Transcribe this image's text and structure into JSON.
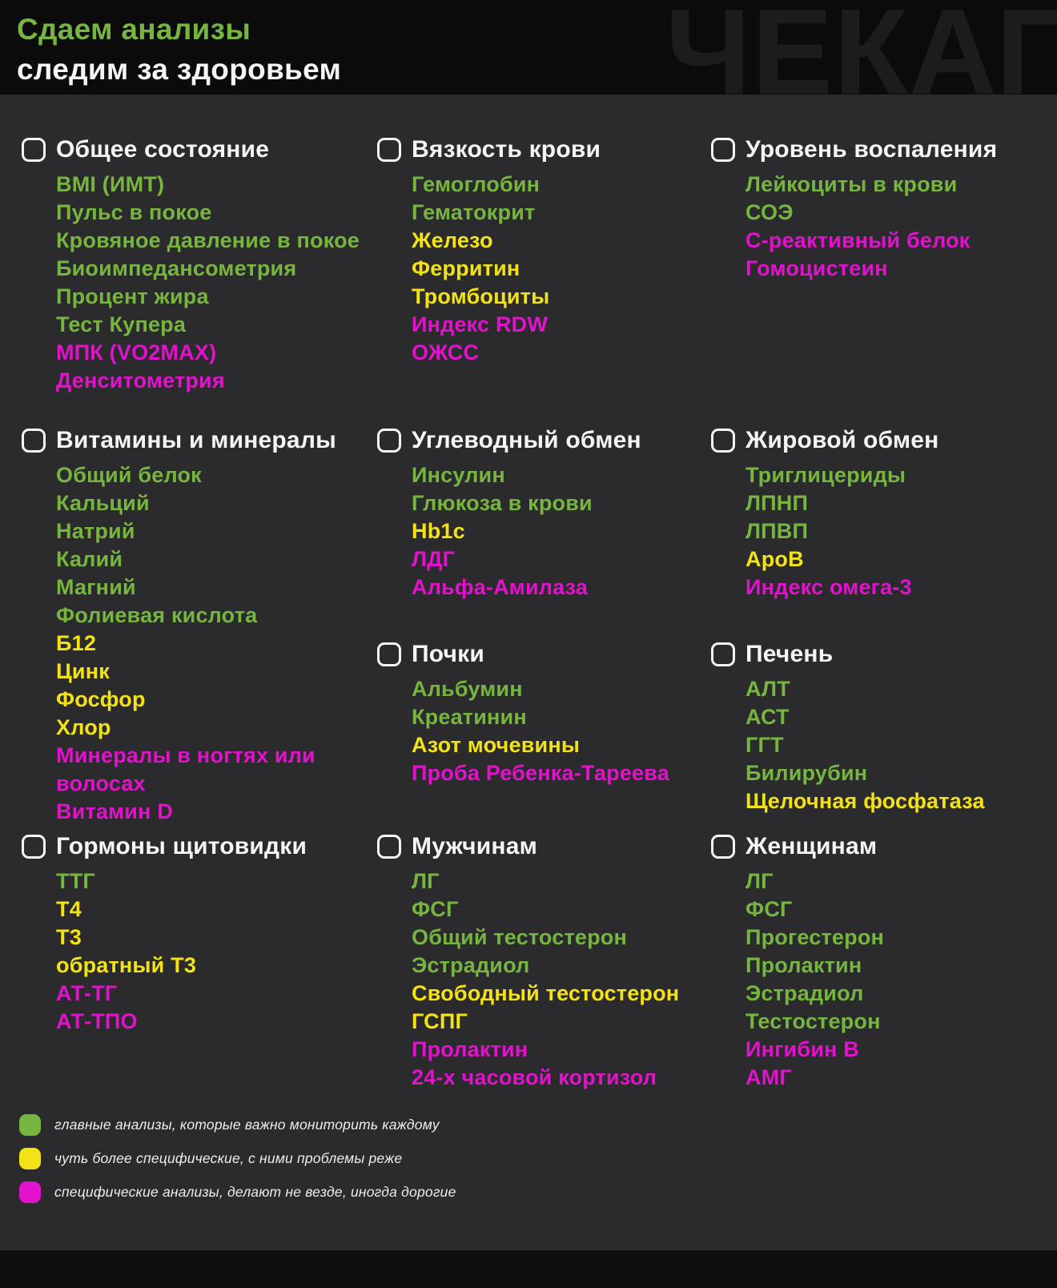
{
  "header": {
    "title_line1": "Сдаем анализы",
    "title_line2": "следим за здоровьем",
    "watermark": "ЧЕКАП"
  },
  "colors": {
    "green": "#76b53e",
    "yellow": "#f3e215",
    "magenta": "#e212cc"
  },
  "sections": [
    {
      "title": "Общее состояние",
      "items": [
        {
          "label": "BMI (ИМТ)",
          "level": "green"
        },
        {
          "label": "Пульс в покое",
          "level": "green"
        },
        {
          "label": "Кровяное давление в покое",
          "level": "green"
        },
        {
          "label": "Биоимпедансометрия",
          "level": "green"
        },
        {
          "label": "Процент жира",
          "level": "green"
        },
        {
          "label": "Тест Купера",
          "level": "green"
        },
        {
          "label": "МПК (VO2MAX)",
          "level": "magenta"
        },
        {
          "label": "Денситометрия",
          "level": "magenta"
        }
      ]
    },
    {
      "title": "Вязкость крови",
      "items": [
        {
          "label": "Гемоглобин",
          "level": "green"
        },
        {
          "label": "Гематокрит",
          "level": "green"
        },
        {
          "label": "Железо",
          "level": "yellow"
        },
        {
          "label": "Ферритин",
          "level": "yellow"
        },
        {
          "label": "Тромбоциты",
          "level": "yellow"
        },
        {
          "label": "Индекс RDW",
          "level": "magenta"
        },
        {
          "label": "ОЖСС",
          "level": "magenta"
        }
      ]
    },
    {
      "title": "Уровень воспаления",
      "items": [
        {
          "label": "Лейкоциты в крови",
          "level": "green"
        },
        {
          "label": "СОЭ",
          "level": "green"
        },
        {
          "label": "С-реактивный белок",
          "level": "magenta"
        },
        {
          "label": "Гомоцистеин",
          "level": "magenta"
        }
      ]
    },
    {
      "title": "Витамины и минералы",
      "items": [
        {
          "label": "Общий белок",
          "level": "green"
        },
        {
          "label": "Кальций",
          "level": "green"
        },
        {
          "label": "Натрий",
          "level": "green"
        },
        {
          "label": "Калий",
          "level": "green"
        },
        {
          "label": "Магний",
          "level": "green"
        },
        {
          "label": "Фолиевая кислота",
          "level": "green"
        },
        {
          "label": "Б12",
          "level": "yellow"
        },
        {
          "label": "Цинк",
          "level": "yellow"
        },
        {
          "label": "Фосфор",
          "level": "yellow"
        },
        {
          "label": "Хлор",
          "level": "yellow"
        },
        {
          "label": "Минералы в ногтях или волосах",
          "level": "magenta"
        },
        {
          "label": "Витамин D",
          "level": "magenta"
        }
      ]
    },
    {
      "title": "Углеводный обмен",
      "items": [
        {
          "label": "Инсулин",
          "level": "green"
        },
        {
          "label": "Глюкоза в крови",
          "level": "green"
        },
        {
          "label": "Hb1c",
          "level": "yellow"
        },
        {
          "label": "ЛДГ",
          "level": "magenta"
        },
        {
          "label": "Альфа-Амилаза",
          "level": "magenta"
        }
      ]
    },
    {
      "title": "Жировой обмен",
      "items": [
        {
          "label": "Триглицериды",
          "level": "green"
        },
        {
          "label": "ЛПНП",
          "level": "green"
        },
        {
          "label": "ЛПВП",
          "level": "green"
        },
        {
          "label": "ApoB",
          "level": "yellow"
        },
        {
          "label": "Индекс омега-3",
          "level": "magenta"
        }
      ]
    },
    {
      "title": "Почки",
      "items": [
        {
          "label": "Альбумин",
          "level": "green"
        },
        {
          "label": "Креатинин",
          "level": "green"
        },
        {
          "label": "Азот мочевины",
          "level": "yellow"
        },
        {
          "label": "Проба Ребенка-Тареева",
          "level": "magenta"
        }
      ]
    },
    {
      "title": "Печень",
      "items": [
        {
          "label": "АЛТ",
          "level": "green"
        },
        {
          "label": "АСТ",
          "level": "green"
        },
        {
          "label": "ГГТ",
          "level": "green"
        },
        {
          "label": "Билирубин",
          "level": "green"
        },
        {
          "label": "Щелочная фосфатаза",
          "level": "yellow"
        }
      ]
    },
    {
      "title": "Гормоны щитовидки",
      "items": [
        {
          "label": "ТТГ",
          "level": "green"
        },
        {
          "label": "Т4",
          "level": "yellow"
        },
        {
          "label": "Т3",
          "level": "yellow"
        },
        {
          "label": "обратный Т3",
          "level": "yellow"
        },
        {
          "label": "АТ-ТГ",
          "level": "magenta"
        },
        {
          "label": "АТ-ТПО",
          "level": "magenta"
        }
      ]
    },
    {
      "title": "Мужчинам",
      "items": [
        {
          "label": "ЛГ",
          "level": "green"
        },
        {
          "label": "ФСГ",
          "level": "green"
        },
        {
          "label": "Общий тестостерон",
          "level": "green"
        },
        {
          "label": "Эстрадиол",
          "level": "green"
        },
        {
          "label": "Свободный тестостерон",
          "level": "yellow"
        },
        {
          "label": "ГСПГ",
          "level": "yellow"
        },
        {
          "label": "Пролактин",
          "level": "magenta"
        },
        {
          "label": "24-х часовой кортизол",
          "level": "magenta"
        }
      ]
    },
    {
      "title": "Женщинам",
      "items": [
        {
          "label": "ЛГ",
          "level": "green"
        },
        {
          "label": "ФСГ",
          "level": "green"
        },
        {
          "label": "Прогестерон",
          "level": "green"
        },
        {
          "label": "Пролактин",
          "level": "green"
        },
        {
          "label": "Эстрадиол",
          "level": "green"
        },
        {
          "label": "Тестостерон",
          "level": "green"
        },
        {
          "label": "Ингибин В",
          "level": "magenta"
        },
        {
          "label": "АМГ",
          "level": "magenta"
        }
      ]
    }
  ],
  "legend": [
    {
      "color": "green",
      "label": "главные анализы, которые важно мониторить каждому"
    },
    {
      "color": "yellow",
      "label": "чуть более специфические, с ними проблемы реже"
    },
    {
      "color": "magenta",
      "label": "специфические анализы, делают не везде, иногда дорогие"
    }
  ]
}
